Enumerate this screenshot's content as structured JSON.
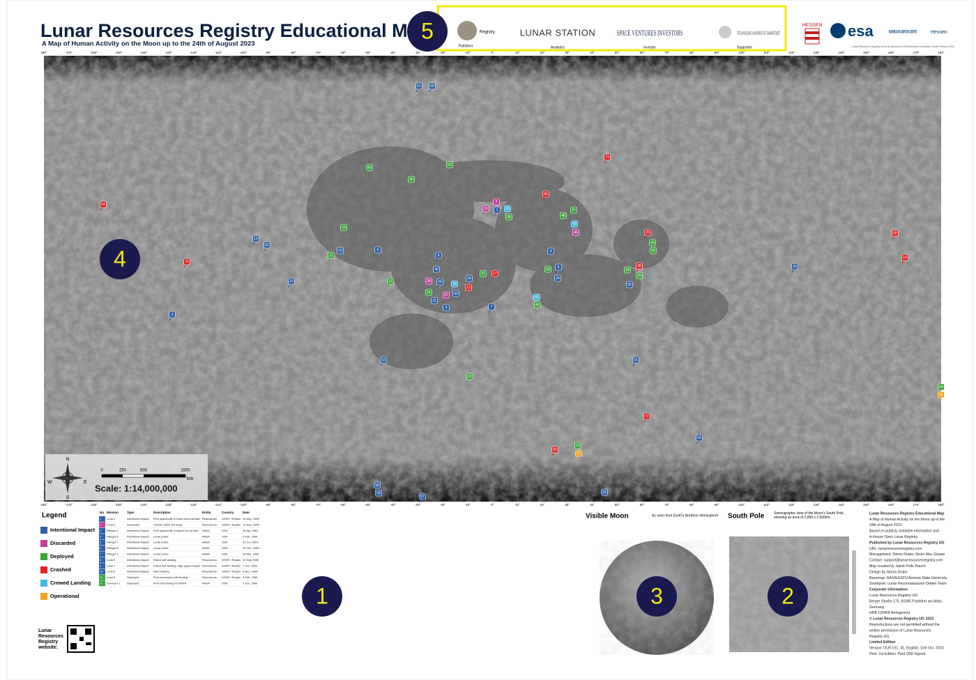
{
  "header": {
    "title": "Lunar Resources Registry Educational Map",
    "subtitle": "A Map of Human Activity on the Moon up to the 24th of August 2023"
  },
  "sponsors": [
    {
      "name": "Registry",
      "role": "Publisher"
    },
    {
      "name": "LUNAR STATION",
      "role": "Analytics"
    },
    {
      "name": "SPACE VENTURES INVESTORS",
      "role": "Investor"
    },
    {
      "name": "TECHNISCHE UNIVERSITÄT DARMSTADT",
      "role": "Supporter"
    }
  ],
  "partners": {
    "state": "HESSEN",
    "agency": "esa",
    "bic": "BUSINESS INCUBATION CENTRE",
    "region": "Hessen",
    "note": "Lunar Resources Registry UG is an Alumnus of ESA Business Incubation Centre Hessen 2023"
  },
  "callouts": [
    "1",
    "2",
    "3",
    "4",
    "5"
  ],
  "longitudes": [
    "180°",
    "-170°",
    "-160°",
    "-150°",
    "-140°",
    "-130°",
    "-120°",
    "-110°",
    "-100°",
    "-90°",
    "-80°",
    "-70°",
    "-60°",
    "-50°",
    "-40°",
    "-30°",
    "-20°",
    "-10°",
    "0°",
    "10°",
    "20°",
    "30°",
    "40°",
    "50°",
    "60°",
    "70°",
    "80°",
    "90°",
    "100°",
    "110°",
    "120°",
    "130°",
    "140°",
    "150°",
    "160°",
    "170°",
    "180°"
  ],
  "legend": {
    "title": "Legend",
    "items": [
      {
        "label": "Intentional Impact",
        "color": "#2f5fa8"
      },
      {
        "label": "Discarded",
        "color": "#c2409c"
      },
      {
        "label": "Deployed",
        "color": "#3aa53a"
      },
      {
        "label": "Crashed",
        "color": "#e02424"
      },
      {
        "label": "Crewed Landing",
        "color": "#3fb8e2"
      },
      {
        "label": "Operational",
        "color": "#f2a21e"
      }
    ]
  },
  "markers": [
    {
      "label": "61",
      "type": "Intentional Impact"
    },
    {
      "label": "60",
      "type": "Intentional Impact"
    },
    {
      "label": "71",
      "type": "Crashed"
    },
    {
      "label": "69",
      "type": "Deployed"
    },
    {
      "label": "62",
      "type": "Deployed"
    },
    {
      "label": "30",
      "type": "Deployed"
    },
    {
      "label": "66",
      "type": "Crashed"
    },
    {
      "label": "54",
      "type": "Crashed"
    },
    {
      "label": "32",
      "type": "Discarded"
    },
    {
      "label": "2",
      "type": "Discarded"
    },
    {
      "label": "1",
      "type": "Intentional Impact"
    },
    {
      "label": "35",
      "type": "Crewed Landing"
    },
    {
      "label": "36",
      "type": "Deployed"
    },
    {
      "label": "47",
      "type": "Deployed"
    },
    {
      "label": "48",
      "type": "Deployed"
    },
    {
      "label": "45",
      "type": "Crewed Landing"
    },
    {
      "label": "46",
      "type": "Discarded"
    },
    {
      "label": "15",
      "type": "Deployed"
    },
    {
      "label": "25",
      "type": "Crashed"
    },
    {
      "label": "19",
      "type": "Intentional Impact"
    },
    {
      "label": "63",
      "type": "Intentional Impact"
    },
    {
      "label": "49",
      "type": "Deployed"
    },
    {
      "label": "50",
      "type": "Deployed"
    },
    {
      "label": "68",
      "type": "Crashed"
    },
    {
      "label": "10",
      "type": "Intentional Impact"
    },
    {
      "label": "11",
      "type": "Deployed"
    },
    {
      "label": "9",
      "type": "Intentional Impact"
    },
    {
      "label": "8",
      "type": "Intentional Impact"
    },
    {
      "label": "4",
      "type": "Intentional Impact"
    },
    {
      "label": "14",
      "type": "Crashed"
    },
    {
      "label": "70",
      "type": "Crashed"
    },
    {
      "label": "20",
      "type": "Intentional Impact"
    },
    {
      "label": "38",
      "type": "Crashed"
    },
    {
      "label": "39",
      "type": "Deployed"
    },
    {
      "label": "29",
      "type": "Deployed"
    },
    {
      "label": "40",
      "type": "Intentional Impact"
    },
    {
      "label": "18",
      "type": "Deployed"
    },
    {
      "label": "6",
      "type": "Intentional Impact"
    },
    {
      "label": "21",
      "type": "Deployed"
    },
    {
      "label": "17",
      "type": "Crashed"
    },
    {
      "label": "24",
      "type": "Intentional Impact"
    },
    {
      "label": "34",
      "type": "Intentional Impact"
    },
    {
      "label": "55",
      "type": "Intentional Impact"
    },
    {
      "label": "23",
      "type": "Intentional Impact"
    },
    {
      "label": "12",
      "type": "Deployed"
    },
    {
      "label": "28",
      "type": "Discarded"
    },
    {
      "label": "26",
      "type": "Intentional Impact"
    },
    {
      "label": "33",
      "type": "Crewed Landing"
    },
    {
      "label": "13",
      "type": "Crashed"
    },
    {
      "label": "16",
      "type": "Deployed"
    },
    {
      "label": "37",
      "type": "Discarded"
    },
    {
      "label": "43",
      "type": "Intentional Impact"
    },
    {
      "label": "31",
      "type": "Intentional Impact"
    },
    {
      "label": "5",
      "type": "Intentional Impact"
    },
    {
      "label": "41",
      "type": "Crewed Landing"
    },
    {
      "label": "42",
      "type": "Deployed"
    },
    {
      "label": "7",
      "type": "Intentional Impact"
    },
    {
      "label": "3",
      "type": "Intentional Impact"
    },
    {
      "label": "53",
      "type": "Intentional Impact"
    },
    {
      "label": "51",
      "type": "Intentional Impact"
    },
    {
      "label": "22",
      "type": "Deployed"
    },
    {
      "label": "64",
      "type": "Deployed"
    },
    {
      "label": "65",
      "type": "Operational"
    },
    {
      "label": "72",
      "type": "Crashed"
    },
    {
      "label": "56",
      "type": "Intentional Impact"
    },
    {
      "label": "73",
      "type": "Deployed"
    },
    {
      "label": "57",
      "type": "Operational"
    },
    {
      "label": "59",
      "type": "Crashed"
    },
    {
      "label": "58",
      "type": "Intentional Impact"
    },
    {
      "label": "59",
      "type": "Intentional Impact"
    },
    {
      "label": "57",
      "type": "Intentional Impact"
    },
    {
      "label": "52",
      "type": "Intentional Impact"
    }
  ],
  "scale": {
    "text": "Scale: 1:14,000,000",
    "ticks": [
      "0",
      "250",
      "500",
      "1000"
    ],
    "unit": "km",
    "compass": [
      "N",
      "E",
      "S",
      "W"
    ]
  },
  "table": {
    "headers": [
      "No.",
      "Mission",
      "Type",
      "Description",
      "Entity",
      "Country",
      "Date"
    ],
    "rows": [
      [
        "1",
        "Luna 2",
        "Intentional Impact",
        "First spacecraft to reach lunar surface",
        "Roscosmos",
        "USSR / Russia",
        "13 Sep. 1959"
      ],
      [
        "2",
        "Luna 2",
        "Discarded",
        "Vostok rocket 3rd stage",
        "Roscosmos",
        "USSR / Russia",
        "13 Sep. 1959"
      ],
      [
        "3",
        "Ranger 4",
        "Intentional Impact",
        "First spacecraft to impact on far side",
        "NASA",
        "USA",
        "26 Apr. 1962"
      ],
      [
        "4",
        "Ranger 6",
        "Intentional Impact",
        "Lunar probe",
        "NASA",
        "USA",
        "2 Feb. 1964"
      ],
      [
        "5",
        "Ranger 7",
        "Intentional Impact",
        "Lunar probe",
        "NASA",
        "USA",
        "31 Jul. 1964"
      ],
      [
        "6",
        "Ranger 8",
        "Intentional Impact",
        "Lunar probe",
        "NASA",
        "USA",
        "20 Feb. 1965"
      ],
      [
        "7",
        "Ranger 9",
        "Intentional Impact",
        "Lunar probe",
        "NASA",
        "USA",
        "24 Mar. 1965"
      ],
      [
        "8",
        "Luna 5",
        "Intentional Impact",
        "Failed soft landing",
        "Roscosmos",
        "USSR / Russia",
        "12 May 1965"
      ],
      [
        "9",
        "Luna 7",
        "Intentional Impact",
        "Failed soft landing, high-speed impact",
        "Roscosmos",
        "USSR / Russia",
        "7 Oct. 1965"
      ],
      [
        "10",
        "Luna 8",
        "Intentional Impact",
        "Hard landing",
        "Roscosmos",
        "USSR / Russia",
        "6 Dec. 1965"
      ],
      [
        "11",
        "Luna 9",
        "Deployed",
        "First successful soft landing",
        "Roscosmos",
        "USSR / Russia",
        "3 Feb. 1966"
      ],
      [
        "12",
        "Surveyor 1",
        "Deployed",
        "First soft landing for NASA",
        "NASA",
        "USA",
        "2 Jun. 1966"
      ]
    ]
  },
  "website": [
    "Lunar",
    "Resources",
    "Registry",
    "website:"
  ],
  "visible_moon": {
    "title": "Visible Moon",
    "subtitle": "As seen from Earth's Northern Hemisphere"
  },
  "south_pole": {
    "title": "South Pole",
    "subtitle": "Stereographic view of the Moon's South Pole, showing an area of 2,800 x 2,600km."
  },
  "info": [
    "Lunar Resources Registry Educational Map",
    "A Map of Human Activity on the Moon up to the",
    "24th of August 2023.",
    "Based on publicly available information and",
    "in-house Open Lunar Registry.",
    "Published by Lunar Resources Registry UG",
    "URL: lunarresourcesregistry.com",
    "Management: Simon Drake, Nevin Mac Gowan",
    "Contact: support@lunarresourcesregistry.com",
    "Map created by Jakob Pelle Rauch.",
    "Design by Simon Drake",
    "Basemap: NASA/GSFC/Arizona State University",
    "Southpole: Lunar Reconnaissance Orbiter Team",
    "Corporate Information",
    "Lunar Resources Registry UG",
    "Berger Straße 175, 60385 Frankfurt am Main,",
    "Germany",
    "HRB 120408 Amtsgericht",
    "© Lunar Resources Registry UG 2023",
    "Reproductions are not permitted without the",
    "written permission of Lunar Resources",
    "Registry UG.",
    "Limited Edition",
    "Version: OLR-V11, 41, English, 11th Oct. 2023",
    "Print: 1st Edition.  Print    /200  Signed"
  ]
}
